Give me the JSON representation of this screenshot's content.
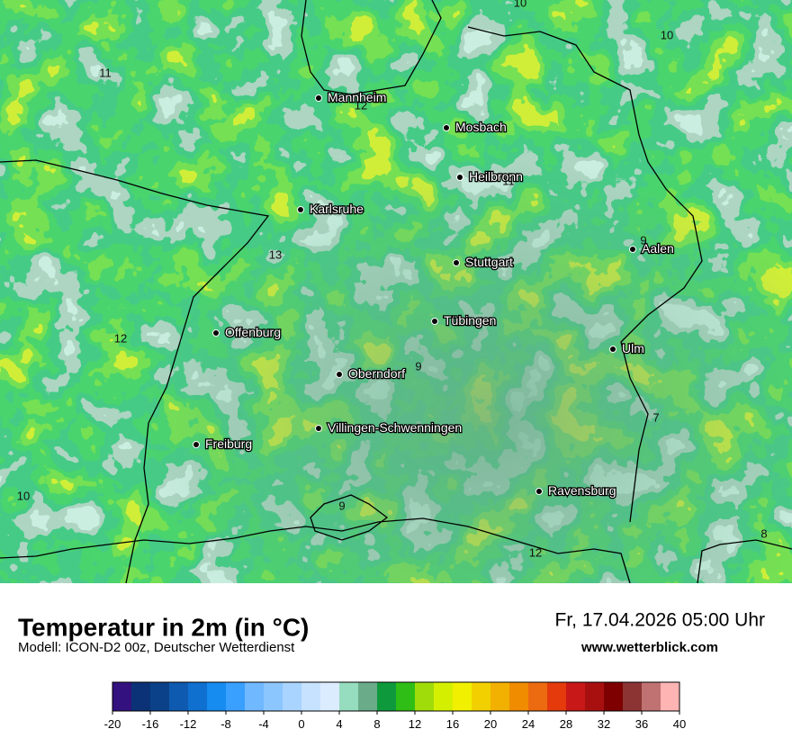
{
  "header": {
    "title": "Temperatur in 2m (in °C)",
    "subtitle": "Modell: ICON-D2 00z, Deutscher Wetterdienst",
    "date": "Fr, 17.04.2026 05:00 Uhr",
    "website": "www.wetterblick.com"
  },
  "map": {
    "cities": [
      "Mannheim",
      "Mosbach",
      "Heilbronn",
      "Karlsruhe",
      "Aalen",
      "Stuttgart",
      "Tübingen",
      "Ulm",
      "Offenburg",
      "Oberndorf",
      "Villingen-Schwenningen",
      "Freiburg",
      "Ravensburg"
    ],
    "contour_labels": [
      10,
      10,
      11,
      12,
      11,
      9,
      13,
      12,
      9,
      7,
      10,
      9,
      12,
      8
    ]
  },
  "colorbar": {
    "ticks": [
      -20,
      -16,
      -12,
      -8,
      -4,
      0,
      4,
      8,
      12,
      16,
      20,
      24,
      28,
      32,
      36,
      40
    ],
    "colors": [
      "#33127f",
      "#0b3276",
      "#0b4188",
      "#0d5ab0",
      "#0f70d0",
      "#168bf0",
      "#3aa0ff",
      "#70b8ff",
      "#8cc6ff",
      "#a8d4ff",
      "#c6e2ff",
      "#dcecff",
      "#96dcbe",
      "#6aac8a",
      "#0e9a3c",
      "#2fbe16",
      "#a0dc0a",
      "#d4f000",
      "#f0f000",
      "#f2d000",
      "#f2b000",
      "#f08c00",
      "#ec6a10",
      "#e43a0c",
      "#c81818",
      "#a81010",
      "#7e0000",
      "#8c3434",
      "#c07272",
      "#ffb4b4"
    ]
  }
}
